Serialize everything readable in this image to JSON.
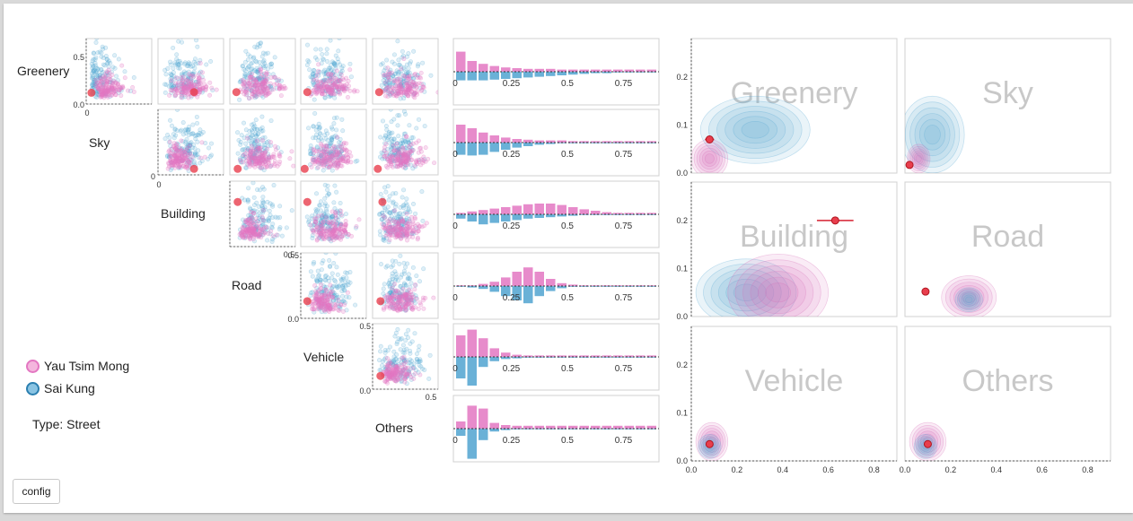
{
  "variables": [
    "Greenery",
    "Sky",
    "Building",
    "Road",
    "Vehicle",
    "Others"
  ],
  "legend": {
    "items": [
      {
        "label": "Yau Tsim Mong",
        "color": "#e377c2"
      },
      {
        "label": "Sai Kung",
        "color": "#4fa6d0"
      }
    ]
  },
  "type_label": "Type: Street",
  "config_label": "config",
  "colors": {
    "pink": "#e377c2",
    "blue": "#4fa6d0",
    "red": "#e83e4d",
    "watermark": "#c8c8c8"
  },
  "chart_data": [
    {
      "type": "scatter",
      "title": "scatter matrix",
      "series": [
        {
          "name": "Yau Tsim Mong"
        },
        {
          "name": "Sai Kung"
        }
      ],
      "tick_labels": {
        "scatter_y_first": [
          "0.5",
          "0.0"
        ],
        "scatter_y_zero": "0",
        "scatter_x_zero": "0",
        "building_x_end": "0.5",
        "road_left": [
          "0.5",
          "0.0"
        ],
        "vehicle_left": [
          "0.5",
          "0.0"
        ],
        "others_x_end": "0.5"
      },
      "highlight_point": [
        [
          0.08,
          0.09
        ],
        [
          0.55,
          0.1
        ],
        [
          0.1,
          0.1
        ],
        [
          0.1,
          0.1
        ],
        [
          0.1,
          0.1
        ],
        [
          0.55,
          0.01
        ],
        [
          0.12,
          0.01
        ],
        [
          0.06,
          0.01
        ],
        [
          0.08,
          0.01
        ],
        [
          0.12,
          0.6
        ],
        [
          0.1,
          0.6
        ],
        [
          0.15,
          0.6
        ],
        [
          0.1,
          0.18
        ],
        [
          0.12,
          0.18
        ],
        [
          0.12,
          0.12
        ]
      ]
    },
    {
      "type": "bar",
      "title": "distribution bars",
      "x_ticks": [
        "0",
        "0.25",
        "0.5",
        "0.75"
      ],
      "xlim": [
        0,
        0.9
      ],
      "series": [
        {
          "name": "Yau Tsim Mong"
        },
        {
          "name": "Sai Kung"
        }
      ],
      "rows": [
        {
          "variable": "Greenery",
          "pink": [
            0.28,
            0.15,
            0.11,
            0.08,
            0.06,
            0.05,
            0.04,
            0.04,
            0.04,
            0.03,
            0.03,
            0.03,
            0.03,
            0.03,
            0.03,
            0.03,
            0.03,
            0.03
          ],
          "blue": [
            0.12,
            0.12,
            0.12,
            0.11,
            0.1,
            0.09,
            0.08,
            0.07,
            0.06,
            0.05,
            0.04,
            0.03,
            0.02,
            0.02,
            0.01,
            0.01,
            0.01,
            0.01
          ]
        },
        {
          "variable": "Sky",
          "pink": [
            0.25,
            0.2,
            0.14,
            0.1,
            0.07,
            0.05,
            0.04,
            0.03,
            0.03,
            0.03,
            0.02,
            0.02,
            0.02,
            0.02,
            0.02,
            0.02,
            0.02,
            0.02
          ],
          "blue": [
            0.17,
            0.18,
            0.17,
            0.13,
            0.1,
            0.07,
            0.05,
            0.03,
            0.02,
            0.01,
            0.01,
            0.01,
            0.01,
            0.01,
            0.01,
            0.01,
            0.01,
            0.01
          ]
        },
        {
          "variable": "Building",
          "pink": [
            0.02,
            0.04,
            0.06,
            0.08,
            0.1,
            0.12,
            0.14,
            0.15,
            0.15,
            0.13,
            0.1,
            0.07,
            0.05,
            0.03,
            0.02,
            0.02,
            0.02,
            0.02
          ],
          "blue": [
            0.06,
            0.1,
            0.14,
            0.12,
            0.1,
            0.08,
            0.06,
            0.05,
            0.04,
            0.03,
            0.02,
            0.01,
            0.01,
            0.01,
            0.01,
            0.01,
            0.01,
            0.01
          ]
        },
        {
          "variable": "Road",
          "pink": [
            0.01,
            0.01,
            0.03,
            0.06,
            0.12,
            0.2,
            0.26,
            0.2,
            0.1,
            0.04,
            0.02,
            0.01,
            0.01,
            0.01,
            0.01,
            0.01,
            0.01,
            0.01
          ],
          "blue": [
            0.01,
            0.02,
            0.04,
            0.08,
            0.14,
            0.2,
            0.24,
            0.14,
            0.07,
            0.03,
            0.01,
            0.01,
            0.01,
            0.01,
            0.01,
            0.01,
            0.01,
            0.01
          ]
        },
        {
          "variable": "Vehicle",
          "pink": [
            0.3,
            0.38,
            0.26,
            0.12,
            0.06,
            0.03,
            0.02,
            0.02,
            0.02,
            0.02,
            0.02,
            0.02,
            0.02,
            0.02,
            0.02,
            0.02,
            0.02,
            0.02
          ],
          "blue": [
            0.3,
            0.4,
            0.14,
            0.06,
            0.03,
            0.02,
            0.01,
            0.01,
            0.01,
            0.01,
            0.01,
            0.01,
            0.01,
            0.01,
            0.01,
            0.01,
            0.01,
            0.01
          ]
        },
        {
          "variable": "Others",
          "pink": [
            0.1,
            0.32,
            0.28,
            0.08,
            0.05,
            0.04,
            0.04,
            0.04,
            0.04,
            0.04,
            0.04,
            0.04,
            0.04,
            0.04,
            0.04,
            0.04,
            0.04,
            0.04
          ],
          "blue": [
            0.1,
            0.42,
            0.16,
            0.04,
            0.02,
            0.01,
            0.01,
            0.01,
            0.01,
            0.01,
            0.01,
            0.01,
            0.01,
            0.01,
            0.01,
            0.01,
            0.01,
            0.01
          ]
        }
      ]
    },
    {
      "type": "area",
      "title": "density grid",
      "xlim": [
        0,
        0.9
      ],
      "ylim": [
        0,
        0.28
      ],
      "x_ticks": [
        "0.0",
        "0.2",
        "0.4",
        "0.6",
        "0.8"
      ],
      "y_ticks": [
        "0.0",
        "0.1",
        "0.2"
      ],
      "panels": [
        {
          "label": "Greenery",
          "blobs": [
            {
              "color": "blue",
              "cx": 0.28,
              "cy": 0.09,
              "rx": 0.24,
              "ry": 0.07
            },
            {
              "color": "pink",
              "cx": 0.08,
              "cy": 0.03,
              "rx": 0.08,
              "ry": 0.04
            }
          ],
          "point": [
            0.08,
            0.07
          ],
          "err": 0.02
        },
        {
          "label": "Sky",
          "blobs": [
            {
              "color": "blue",
              "cx": 0.12,
              "cy": 0.08,
              "rx": 0.14,
              "ry": 0.08
            },
            {
              "color": "pink",
              "cx": 0.06,
              "cy": 0.03,
              "rx": 0.05,
              "ry": 0.03
            }
          ],
          "point": [
            0.02,
            0.017
          ],
          "err": 0
        },
        {
          "label": "Building",
          "blobs": [
            {
              "color": "blue",
              "cx": 0.24,
              "cy": 0.05,
              "rx": 0.22,
              "ry": 0.07
            },
            {
              "color": "pink",
              "cx": 0.38,
              "cy": 0.05,
              "rx": 0.22,
              "ry": 0.08
            }
          ],
          "point": [
            0.63,
            0.2
          ],
          "err": 0.08
        },
        {
          "label": "Road",
          "blobs": [
            {
              "color": "pink",
              "cx": 0.28,
              "cy": 0.04,
              "rx": 0.12,
              "ry": 0.045
            },
            {
              "color": "blue",
              "cx": 0.28,
              "cy": 0.035,
              "rx": 0.06,
              "ry": 0.025
            }
          ],
          "point": [
            0.09,
            0.052
          ],
          "err": 0
        },
        {
          "label": "Vehicle",
          "blobs": [
            {
              "color": "pink",
              "cx": 0.09,
              "cy": 0.04,
              "rx": 0.07,
              "ry": 0.04
            },
            {
              "color": "blue",
              "cx": 0.08,
              "cy": 0.03,
              "rx": 0.05,
              "ry": 0.025
            }
          ],
          "point": [
            0.08,
            0.035
          ],
          "err": 0
        },
        {
          "label": "Others",
          "blobs": [
            {
              "color": "pink",
              "cx": 0.1,
              "cy": 0.04,
              "rx": 0.08,
              "ry": 0.04
            },
            {
              "color": "blue",
              "cx": 0.09,
              "cy": 0.03,
              "rx": 0.05,
              "ry": 0.025
            }
          ],
          "point": [
            0.1,
            0.035
          ],
          "err": 0
        }
      ]
    }
  ]
}
